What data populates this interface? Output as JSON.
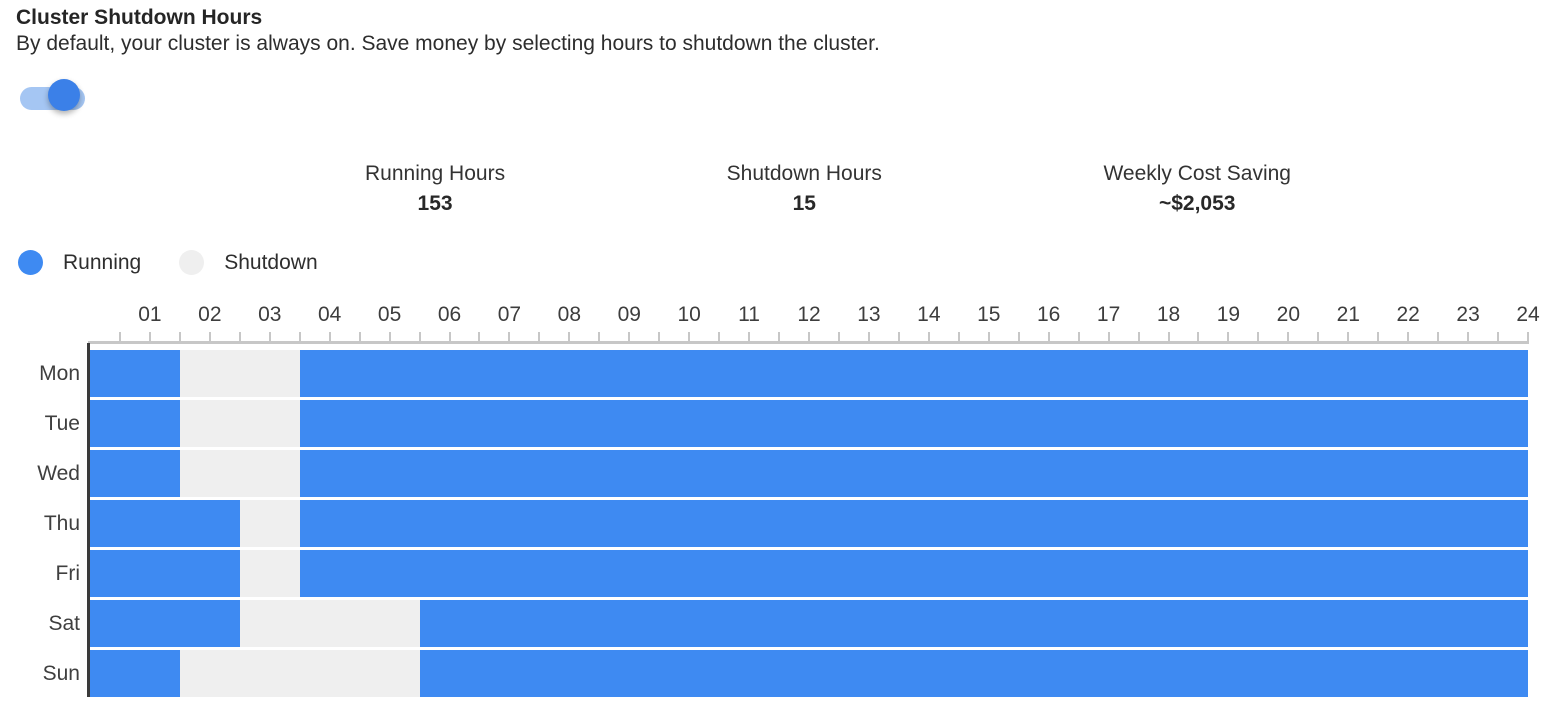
{
  "header": {
    "title": "Cluster Shutdown Hours",
    "subtitle": "By default, your cluster is always on. Save money by selecting hours to shutdown the cluster."
  },
  "toggle": {
    "state": "on"
  },
  "stats": [
    {
      "label": "Running Hours",
      "value": "153"
    },
    {
      "label": "Shutdown Hours",
      "value": "15"
    },
    {
      "label": "Weekly Cost Saving",
      "value": "~$2,053"
    }
  ],
  "legend": [
    {
      "label": "Running",
      "state": "running"
    },
    {
      "label": "Shutdown",
      "state": "shutdown"
    }
  ],
  "colors": {
    "running": "#3e8af2",
    "shutdown": "#efefef",
    "axis": "#c7c7c7",
    "axis_dark": "#3a3a3a",
    "toggle_track": "#a5c6f3",
    "toggle_knob": "#3b80e8"
  },
  "chart_data": {
    "type": "heatmap",
    "title": "Weekly cluster running/shutdown schedule",
    "x_unit": "hour",
    "x_range": [
      0,
      24
    ],
    "tick_interval_hours": 0.5,
    "hour_labels": [
      "01",
      "02",
      "03",
      "04",
      "05",
      "06",
      "07",
      "08",
      "09",
      "10",
      "11",
      "12",
      "13",
      "14",
      "15",
      "16",
      "17",
      "18",
      "19",
      "20",
      "21",
      "22",
      "23",
      "24"
    ],
    "days": [
      "Mon",
      "Tue",
      "Wed",
      "Thu",
      "Fri",
      "Sat",
      "Sun"
    ],
    "rows": [
      {
        "day": "Mon",
        "segments": [
          {
            "start": 0,
            "end": 1.5,
            "state": "running"
          },
          {
            "start": 1.5,
            "end": 3.5,
            "state": "shutdown"
          },
          {
            "start": 3.5,
            "end": 24,
            "state": "running"
          }
        ]
      },
      {
        "day": "Tue",
        "segments": [
          {
            "start": 0,
            "end": 1.5,
            "state": "running"
          },
          {
            "start": 1.5,
            "end": 3.5,
            "state": "shutdown"
          },
          {
            "start": 3.5,
            "end": 24,
            "state": "running"
          }
        ]
      },
      {
        "day": "Wed",
        "segments": [
          {
            "start": 0,
            "end": 1.5,
            "state": "running"
          },
          {
            "start": 1.5,
            "end": 3.5,
            "state": "shutdown"
          },
          {
            "start": 3.5,
            "end": 24,
            "state": "running"
          }
        ]
      },
      {
        "day": "Thu",
        "segments": [
          {
            "start": 0,
            "end": 2.5,
            "state": "running"
          },
          {
            "start": 2.5,
            "end": 3.5,
            "state": "shutdown"
          },
          {
            "start": 3.5,
            "end": 24,
            "state": "running"
          }
        ]
      },
      {
        "day": "Fri",
        "segments": [
          {
            "start": 0,
            "end": 2.5,
            "state": "running"
          },
          {
            "start": 2.5,
            "end": 3.5,
            "state": "shutdown"
          },
          {
            "start": 3.5,
            "end": 24,
            "state": "running"
          }
        ]
      },
      {
        "day": "Sat",
        "segments": [
          {
            "start": 0,
            "end": 2.5,
            "state": "running"
          },
          {
            "start": 2.5,
            "end": 5.5,
            "state": "shutdown"
          },
          {
            "start": 5.5,
            "end": 24,
            "state": "running"
          }
        ]
      },
      {
        "day": "Sun",
        "segments": [
          {
            "start": 0,
            "end": 1.5,
            "state": "running"
          },
          {
            "start": 1.5,
            "end": 5.5,
            "state": "shutdown"
          },
          {
            "start": 5.5,
            "end": 24,
            "state": "running"
          }
        ]
      }
    ],
    "totals": {
      "running_hours": 153,
      "shutdown_hours": 15,
      "weekly_cost_saving": "~$2,053"
    },
    "legend_position": "top-left",
    "grid": false
  }
}
